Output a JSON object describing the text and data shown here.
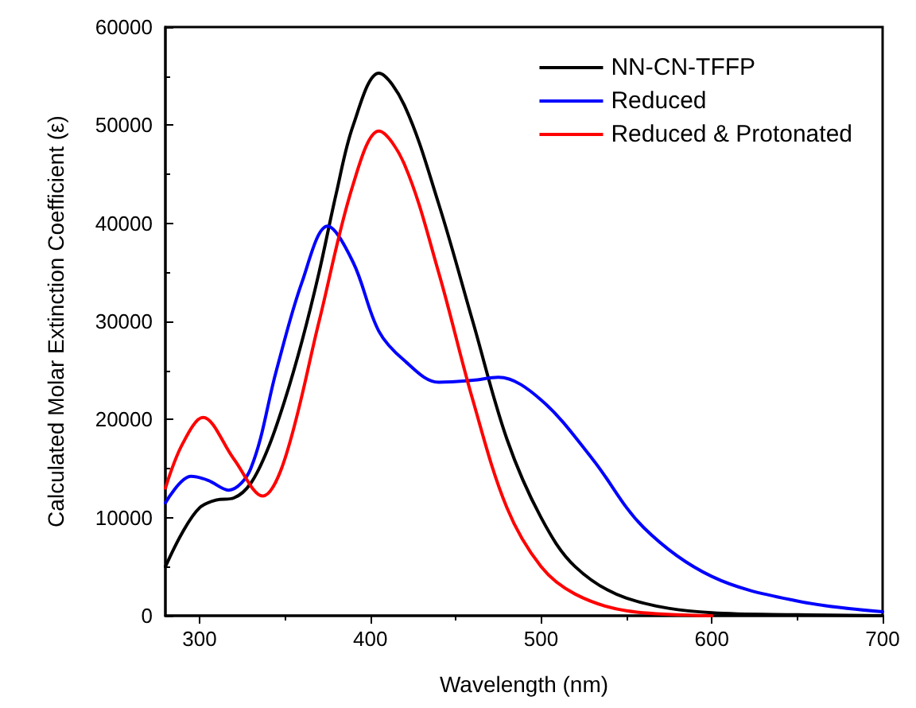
{
  "chart_data": {
    "type": "line",
    "xlabel": "Wavelength (nm)",
    "ylabel": "Calculated Molar Extinction Coefficient (ε)",
    "xlim": [
      280,
      700
    ],
    "xticks": [
      300,
      400,
      500,
      600,
      700
    ],
    "ylim": [
      0,
      60000
    ],
    "yticks": [
      0,
      10000,
      20000,
      30000,
      40000,
      50000,
      60000
    ],
    "grid": false,
    "legend": "top right",
    "marker": "none",
    "line_style": "solid",
    "series": [
      {
        "name": "NN-CN-TFFP",
        "color": "#000000",
        "x": [
          280,
          290,
          300,
          310,
          320,
          330,
          340,
          350,
          360,
          370,
          380,
          390,
          405,
          420,
          440,
          460,
          480,
          500,
          520,
          550,
          600,
          650,
          700
        ],
        "values": [
          5000,
          8500,
          11000,
          11800,
          12000,
          13500,
          17000,
          22000,
          28000,
          35000,
          43000,
          50000,
          55300,
          52000,
          42000,
          30000,
          18000,
          10000,
          5000,
          1800,
          300,
          100,
          0
        ]
      },
      {
        "name": "Reduced",
        "color": "#0000ff",
        "x": [
          280,
          295,
          305,
          317,
          330,
          345,
          360,
          375,
          390,
          405,
          420,
          440,
          460,
          475,
          500,
          530,
          560,
          600,
          650,
          700
        ],
        "values": [
          11500,
          14200,
          13800,
          12800,
          15000,
          25000,
          34000,
          39700,
          36000,
          29000,
          26000,
          23800,
          24000,
          24300,
          22000,
          16000,
          9000,
          4000,
          1500,
          400
        ]
      },
      {
        "name": "Reduced & Protonated",
        "color": "#ff0000",
        "x": [
          280,
          290,
          302,
          320,
          337,
          350,
          370,
          390,
          405,
          420,
          440,
          460,
          480,
          500,
          520,
          550,
          600
        ],
        "values": [
          13000,
          17500,
          20200,
          16000,
          12200,
          16000,
          30000,
          44000,
          49400,
          46000,
          35000,
          22000,
          11000,
          5000,
          2200,
          500,
          0
        ]
      }
    ]
  }
}
